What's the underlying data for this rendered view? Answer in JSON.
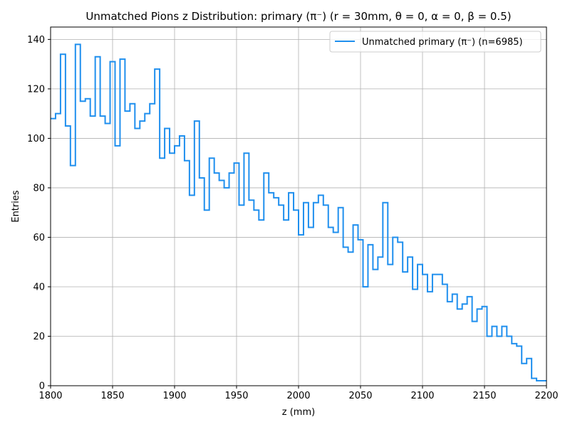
{
  "chart_data": {
    "type": "histogram-step",
    "title": "Unmatched Pions z Distribution: primary (π⁻) (r = 30mm, θ = 0, α = 0, β = 0.5)",
    "xlabel": "z (mm)",
    "ylabel": "Entries",
    "xlim": [
      1800,
      2200
    ],
    "ylim": [
      0,
      145
    ],
    "xticks": [
      1800,
      1850,
      1900,
      1950,
      2000,
      2050,
      2100,
      2150,
      2200
    ],
    "yticks": [
      0,
      20,
      40,
      60,
      80,
      100,
      120,
      140
    ],
    "grid": true,
    "legend_position": "top-right",
    "series": [
      {
        "name": "Unmatched primary (π⁻) (n=6985)",
        "color": "#1f8fee",
        "bin_width": 4,
        "bin_edges_start": 1800,
        "values": [
          108,
          110,
          134,
          105,
          89,
          138,
          115,
          116,
          109,
          133,
          109,
          106,
          131,
          97,
          132,
          111,
          114,
          104,
          107,
          110,
          114,
          128,
          92,
          104,
          94,
          97,
          101,
          91,
          77,
          107,
          84,
          71,
          92,
          86,
          83,
          80,
          86,
          90,
          73,
          94,
          75,
          71,
          67,
          86,
          78,
          76,
          73,
          67,
          78,
          71,
          61,
          74,
          64,
          74,
          77,
          73,
          64,
          62,
          72,
          56,
          54,
          65,
          59,
          40,
          57,
          47,
          52,
          74,
          49,
          60,
          58,
          46,
          52,
          39,
          49,
          45,
          38,
          45,
          45,
          41,
          34,
          37,
          31,
          33,
          36,
          26,
          31,
          32,
          20,
          24,
          20,
          24,
          20,
          17,
          16,
          9,
          11,
          3,
          2,
          2
        ]
      }
    ]
  }
}
